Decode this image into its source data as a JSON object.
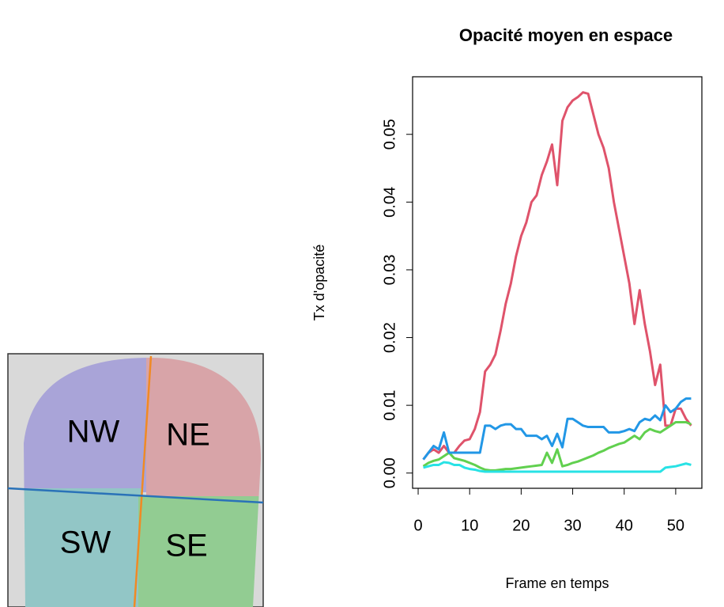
{
  "image": {
    "labels": [
      "NW",
      "NE",
      "SW",
      "SE"
    ]
  },
  "chart_data": {
    "type": "line",
    "title": "Opacité moyen en espace",
    "xlabel": "Frame en temps",
    "ylabel": "Tx d'opacité",
    "x": [
      1,
      2,
      3,
      4,
      5,
      6,
      7,
      8,
      9,
      10,
      11,
      12,
      13,
      14,
      15,
      16,
      17,
      18,
      19,
      20,
      21,
      22,
      23,
      24,
      25,
      26,
      27,
      28,
      29,
      30,
      31,
      32,
      33,
      34,
      35,
      36,
      37,
      38,
      39,
      40,
      41,
      42,
      43,
      44,
      45,
      46,
      47,
      48,
      49,
      50,
      51,
      52,
      53
    ],
    "xlim": [
      -1.08,
      55.08
    ],
    "xticks": [
      0,
      10,
      20,
      30,
      40,
      50
    ],
    "ylim": [
      -0.00225,
      0.0585
    ],
    "yticks": [
      {
        "value": 0,
        "label": "0.00"
      },
      0.01,
      0.02,
      0.03,
      0.04,
      0.05
    ],
    "series": [
      {
        "color": "#df536b",
        "values": [
          0.002,
          0.003,
          0.0035,
          0.003,
          0.004,
          0.003,
          0.003,
          0.004,
          0.0048,
          0.005,
          0.0065,
          0.009,
          0.015,
          0.016,
          0.0175,
          0.021,
          0.025,
          0.028,
          0.032,
          0.035,
          0.037,
          0.04,
          0.041,
          0.044,
          0.046,
          0.0485,
          0.0425,
          0.052,
          0.054,
          0.055,
          0.0555,
          0.0562,
          0.056,
          0.053,
          0.05,
          0.048,
          0.045,
          0.04,
          0.036,
          0.032,
          0.028,
          0.022,
          0.027,
          0.022,
          0.018,
          0.013,
          0.016,
          0.007,
          0.007,
          0.0095,
          0.0095,
          0.008,
          0.007
        ]
      },
      {
        "color": "#61d04f",
        "values": [
          0.001,
          0.0015,
          0.0018,
          0.002,
          0.0025,
          0.003,
          0.0022,
          0.002,
          0.0018,
          0.0015,
          0.0012,
          0.0008,
          0.0005,
          0.0004,
          0.0004,
          0.0005,
          0.0006,
          0.0006,
          0.0007,
          0.0008,
          0.0009,
          0.001,
          0.0011,
          0.0012,
          0.003,
          0.0015,
          0.0035,
          0.001,
          0.0012,
          0.0015,
          0.0017,
          0.002,
          0.0023,
          0.0026,
          0.003,
          0.0033,
          0.0037,
          0.004,
          0.0043,
          0.0045,
          0.005,
          0.0055,
          0.005,
          0.006,
          0.0065,
          0.0062,
          0.006,
          0.0065,
          0.007,
          0.0075,
          0.0075,
          0.0075,
          0.0072
        ]
      },
      {
        "color": "#28e2e5",
        "values": [
          0.0008,
          0.001,
          0.0012,
          0.0012,
          0.0016,
          0.0015,
          0.0012,
          0.0012,
          0.0008,
          0.0006,
          0.0005,
          0.0003,
          0.0002,
          0.0002,
          0.0002,
          0.0002,
          0.0002,
          0.0002,
          0.0002,
          0.0002,
          0.0002,
          0.0002,
          0.0002,
          0.0002,
          0.0002,
          0.0002,
          0.0002,
          0.0002,
          0.0002,
          0.0002,
          0.0002,
          0.0002,
          0.0002,
          0.0002,
          0.0002,
          0.0002,
          0.0002,
          0.0002,
          0.0002,
          0.0002,
          0.0002,
          0.0002,
          0.0002,
          0.0002,
          0.0002,
          0.0002,
          0.0002,
          0.0008,
          0.0009,
          0.001,
          0.0012,
          0.0014,
          0.0012
        ]
      },
      {
        "color": "#2297e6",
        "values": [
          0.002,
          0.003,
          0.004,
          0.0035,
          0.006,
          0.003,
          0.003,
          0.003,
          0.003,
          0.003,
          0.003,
          0.003,
          0.007,
          0.007,
          0.0065,
          0.007,
          0.0072,
          0.0072,
          0.0065,
          0.0065,
          0.0055,
          0.0055,
          0.0055,
          0.005,
          0.0055,
          0.004,
          0.0058,
          0.0038,
          0.008,
          0.008,
          0.0075,
          0.007,
          0.0068,
          0.0068,
          0.0068,
          0.0068,
          0.006,
          0.006,
          0.006,
          0.0062,
          0.0065,
          0.0062,
          0.0075,
          0.008,
          0.0078,
          0.0085,
          0.0078,
          0.01,
          0.009,
          0.0095,
          0.0105,
          0.011,
          0.011
        ]
      }
    ]
  }
}
